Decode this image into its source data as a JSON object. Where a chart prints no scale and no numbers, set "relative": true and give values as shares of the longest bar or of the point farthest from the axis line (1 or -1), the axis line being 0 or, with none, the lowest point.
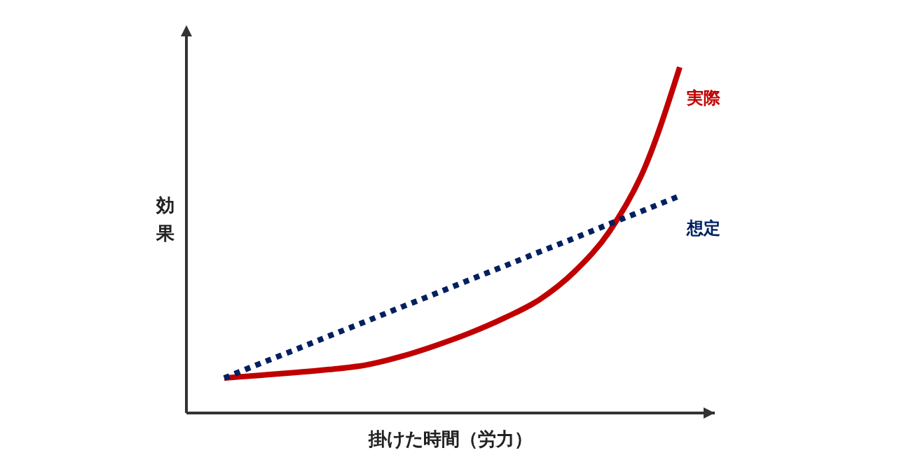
{
  "chart_data": {
    "type": "line",
    "relative": true,
    "xlabel": "掛けた時間（労力）",
    "ylabel": "効果",
    "categories": [
      null,
      null,
      null,
      null,
      null,
      null,
      null,
      null,
      null,
      null,
      null,
      null,
      null,
      null
    ],
    "series": [
      {
        "name": "実際",
        "color": "#c00000",
        "line_style": "solid",
        "values": [
          0.101,
          0.109,
          0.117,
          0.126,
          0.138,
          0.162,
          0.194,
          0.231,
          0.275,
          0.328,
          0.409,
          0.526,
          0.709,
          1
        ]
      },
      {
        "name": "想定",
        "color": "#002060",
        "line_style": "dotted",
        "values": [
          0.101,
          0.142,
          0.182,
          0.223,
          0.263,
          0.304,
          0.344,
          0.385,
          0.425,
          0.466,
          0.506,
          0.547,
          0.587,
          0.628
        ]
      }
    ]
  }
}
